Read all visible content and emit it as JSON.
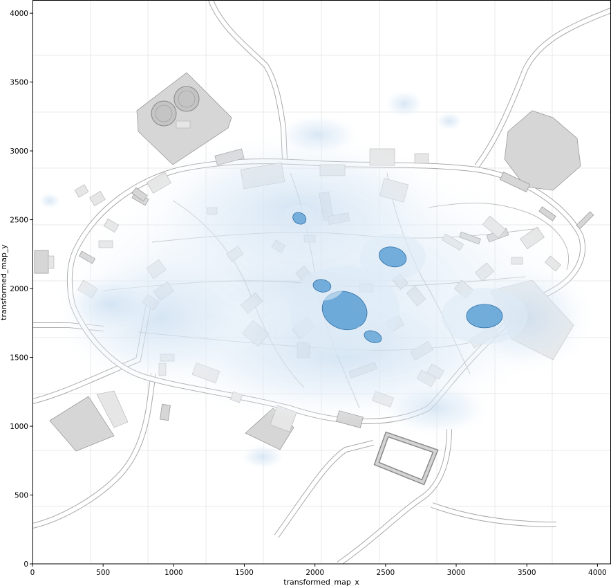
{
  "chart_data": {
    "type": "heatmap",
    "title": "",
    "xlabel": "transformed_map_x",
    "ylabel": "transformed_map_y",
    "xlim": [
      0,
      4096
    ],
    "ylim": [
      0,
      4096
    ],
    "x_ticks": [
      0,
      500,
      1000,
      1500,
      2000,
      2500,
      3000,
      3500,
      4000
    ],
    "y_ticks": [
      0,
      500,
      1000,
      1500,
      2000,
      2500,
      3000,
      3500,
      4000
    ],
    "background": "campus map overlay (grayscale)",
    "colormap": "Blues",
    "colors": {
      "density_high": "#5a9fd4",
      "density_low": "#deebf7",
      "edge": "#2f6ea5"
    },
    "grid": true,
    "density_peaks": [
      {
        "x": 2210,
        "y": 1840,
        "level": 1.0
      },
      {
        "x": 2050,
        "y": 2020,
        "level": 0.9
      },
      {
        "x": 2550,
        "y": 2230,
        "level": 0.9
      },
      {
        "x": 3200,
        "y": 1800,
        "level": 0.95
      },
      {
        "x": 1890,
        "y": 2510,
        "level": 0.8
      },
      {
        "x": 2410,
        "y": 1650,
        "level": 0.75
      }
    ]
  }
}
